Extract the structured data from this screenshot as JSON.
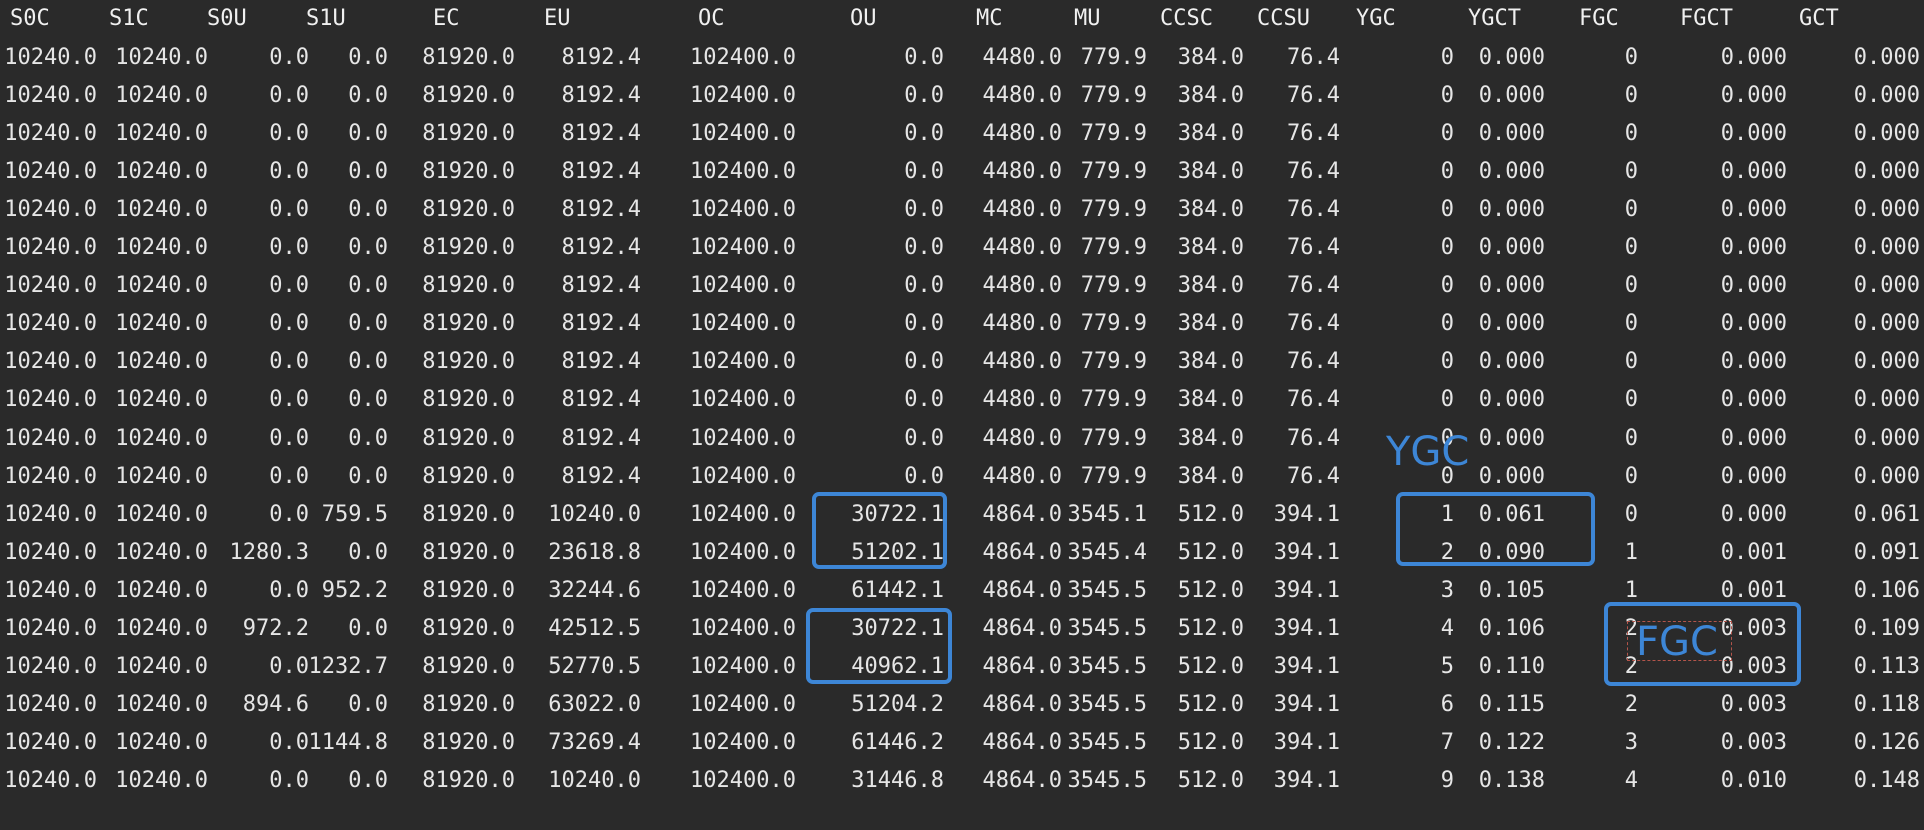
{
  "columns": [
    "S0C",
    "S1C",
    "S0U",
    "S1U",
    "EC",
    "EU",
    "OC",
    "OU",
    "MC",
    "MU",
    "CCSC",
    "CCSU",
    "YGC",
    "YGCT",
    "FGC",
    "FGCT",
    "GCT"
  ],
  "rows": [
    [
      "10240.0",
      "10240.0",
      "0.0",
      "0.0",
      "81920.0",
      "8192.4",
      "102400.0",
      "0.0",
      "4480.0",
      "779.9",
      "384.0",
      "76.4",
      "0",
      "0.000",
      "0",
      "0.000",
      "0.000"
    ],
    [
      "10240.0",
      "10240.0",
      "0.0",
      "0.0",
      "81920.0",
      "8192.4",
      "102400.0",
      "0.0",
      "4480.0",
      "779.9",
      "384.0",
      "76.4",
      "0",
      "0.000",
      "0",
      "0.000",
      "0.000"
    ],
    [
      "10240.0",
      "10240.0",
      "0.0",
      "0.0",
      "81920.0",
      "8192.4",
      "102400.0",
      "0.0",
      "4480.0",
      "779.9",
      "384.0",
      "76.4",
      "0",
      "0.000",
      "0",
      "0.000",
      "0.000"
    ],
    [
      "10240.0",
      "10240.0",
      "0.0",
      "0.0",
      "81920.0",
      "8192.4",
      "102400.0",
      "0.0",
      "4480.0",
      "779.9",
      "384.0",
      "76.4",
      "0",
      "0.000",
      "0",
      "0.000",
      "0.000"
    ],
    [
      "10240.0",
      "10240.0",
      "0.0",
      "0.0",
      "81920.0",
      "8192.4",
      "102400.0",
      "0.0",
      "4480.0",
      "779.9",
      "384.0",
      "76.4",
      "0",
      "0.000",
      "0",
      "0.000",
      "0.000"
    ],
    [
      "10240.0",
      "10240.0",
      "0.0",
      "0.0",
      "81920.0",
      "8192.4",
      "102400.0",
      "0.0",
      "4480.0",
      "779.9",
      "384.0",
      "76.4",
      "0",
      "0.000",
      "0",
      "0.000",
      "0.000"
    ],
    [
      "10240.0",
      "10240.0",
      "0.0",
      "0.0",
      "81920.0",
      "8192.4",
      "102400.0",
      "0.0",
      "4480.0",
      "779.9",
      "384.0",
      "76.4",
      "0",
      "0.000",
      "0",
      "0.000",
      "0.000"
    ],
    [
      "10240.0",
      "10240.0",
      "0.0",
      "0.0",
      "81920.0",
      "8192.4",
      "102400.0",
      "0.0",
      "4480.0",
      "779.9",
      "384.0",
      "76.4",
      "0",
      "0.000",
      "0",
      "0.000",
      "0.000"
    ],
    [
      "10240.0",
      "10240.0",
      "0.0",
      "0.0",
      "81920.0",
      "8192.4",
      "102400.0",
      "0.0",
      "4480.0",
      "779.9",
      "384.0",
      "76.4",
      "0",
      "0.000",
      "0",
      "0.000",
      "0.000"
    ],
    [
      "10240.0",
      "10240.0",
      "0.0",
      "0.0",
      "81920.0",
      "8192.4",
      "102400.0",
      "0.0",
      "4480.0",
      "779.9",
      "384.0",
      "76.4",
      "0",
      "0.000",
      "0",
      "0.000",
      "0.000"
    ],
    [
      "10240.0",
      "10240.0",
      "0.0",
      "0.0",
      "81920.0",
      "8192.4",
      "102400.0",
      "0.0",
      "4480.0",
      "779.9",
      "384.0",
      "76.4",
      "0",
      "0.000",
      "0",
      "0.000",
      "0.000"
    ],
    [
      "10240.0",
      "10240.0",
      "0.0",
      "0.0",
      "81920.0",
      "8192.4",
      "102400.0",
      "0.0",
      "4480.0",
      "779.9",
      "384.0",
      "76.4",
      "0",
      "0.000",
      "0",
      "0.000",
      "0.000"
    ],
    [
      "10240.0",
      "10240.0",
      "0.0",
      "759.5",
      "81920.0",
      "10240.0",
      "102400.0",
      "30722.1",
      "4864.0",
      "3545.1",
      "512.0",
      "394.1",
      "1",
      "0.061",
      "0",
      "0.000",
      "0.061"
    ],
    [
      "10240.0",
      "10240.0",
      "1280.3",
      "0.0",
      "81920.0",
      "23618.8",
      "102400.0",
      "51202.1",
      "4864.0",
      "3545.4",
      "512.0",
      "394.1",
      "2",
      "0.090",
      "1",
      "0.001",
      "0.091"
    ],
    [
      "10240.0",
      "10240.0",
      "0.0",
      "952.2",
      "81920.0",
      "32244.6",
      "102400.0",
      "61442.1",
      "4864.0",
      "3545.5",
      "512.0",
      "394.1",
      "3",
      "0.105",
      "1",
      "0.001",
      "0.106"
    ],
    [
      "10240.0",
      "10240.0",
      "972.2",
      "0.0",
      "81920.0",
      "42512.5",
      "102400.0",
      "30722.1",
      "4864.0",
      "3545.5",
      "512.0",
      "394.1",
      "4",
      "0.106",
      "2",
      "0.003",
      "0.109"
    ],
    [
      "10240.0",
      "10240.0",
      "0.0",
      "1232.7",
      "81920.0",
      "52770.5",
      "102400.0",
      "40962.1",
      "4864.0",
      "3545.5",
      "512.0",
      "394.1",
      "5",
      "0.110",
      "2",
      "0.003",
      "0.113"
    ],
    [
      "10240.0",
      "10240.0",
      "894.6",
      "0.0",
      "81920.0",
      "63022.0",
      "102400.0",
      "51204.2",
      "4864.0",
      "3545.5",
      "512.0",
      "394.1",
      "6",
      "0.115",
      "2",
      "0.003",
      "0.118"
    ],
    [
      "10240.0",
      "10240.0",
      "0.0",
      "1144.8",
      "81920.0",
      "73269.4",
      "102400.0",
      "61446.2",
      "4864.0",
      "3545.5",
      "512.0",
      "394.1",
      "7",
      "0.122",
      "3",
      "0.003",
      "0.126"
    ],
    [
      "10240.0",
      "10240.0",
      "0.0",
      "0.0",
      "81920.0",
      "10240.0",
      "102400.0",
      "31446.8",
      "4864.0",
      "3545.5",
      "512.0",
      "394.1",
      "9",
      "0.138",
      "4",
      "0.010",
      "0.148"
    ]
  ],
  "annotations": {
    "ygc_label": "YGC",
    "fgc_label": "FGC",
    "highlight_color": "#3d86d6"
  }
}
